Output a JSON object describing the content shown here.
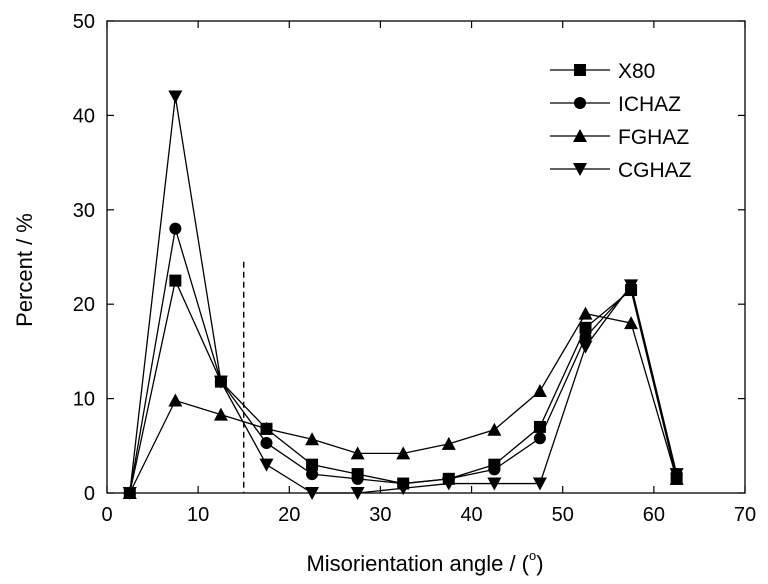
{
  "chart_data": {
    "type": "line",
    "xlabel": "Misorientation angle / (",
    "xlabel_superscript": "o",
    "xlabel_suffix": ")",
    "ylabel": "Percent / %",
    "xlim": [
      0,
      70
    ],
    "ylim": [
      0,
      50
    ],
    "xticks": [
      0,
      10,
      20,
      30,
      40,
      50,
      60,
      70
    ],
    "yticks": [
      0,
      10,
      20,
      30,
      40,
      50
    ],
    "grid": false,
    "legend_position": "top-right",
    "reference_line_x": 15,
    "x": [
      2.5,
      7.5,
      12.5,
      17.5,
      22.5,
      27.5,
      32.5,
      37.5,
      42.5,
      47.5,
      52.5,
      57.5,
      62.5
    ],
    "series": [
      {
        "name": "X80",
        "marker": "square",
        "values": [
          0.0,
          22.5,
          11.8,
          6.8,
          3.0,
          2.0,
          1.0,
          1.5,
          3.0,
          7.0,
          17.5,
          21.5,
          1.5
        ]
      },
      {
        "name": "ICHAZ",
        "marker": "circle",
        "values": [
          0.0,
          28.0,
          11.8,
          5.3,
          2.0,
          1.5,
          1.0,
          1.5,
          2.5,
          5.8,
          16.5,
          21.8,
          2.0
        ]
      },
      {
        "name": "FGHAZ",
        "marker": "triangle-up",
        "values": [
          0.0,
          9.8,
          8.3,
          6.8,
          5.7,
          4.2,
          4.2,
          5.2,
          6.7,
          10.8,
          19.0,
          18.0,
          1.5
        ]
      },
      {
        "name": "CGHAZ",
        "marker": "triangle-down",
        "values": [
          0.0,
          42.0,
          11.8,
          3.0,
          0.0,
          0.0,
          0.5,
          1.0,
          1.0,
          1.0,
          15.5,
          22.0,
          2.0
        ]
      }
    ]
  }
}
